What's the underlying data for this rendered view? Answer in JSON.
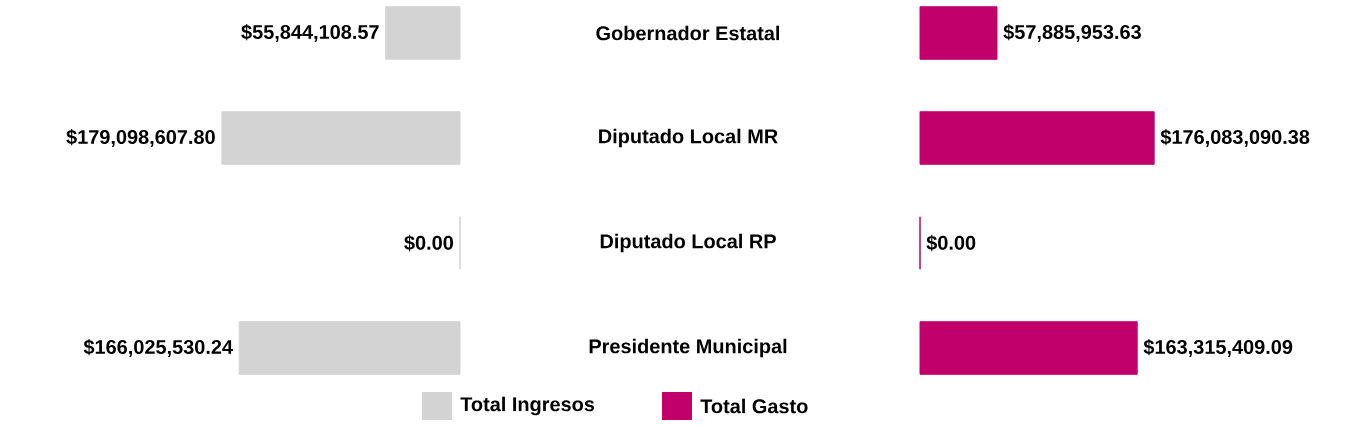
{
  "chart_data": [
    {
      "type": "bar",
      "orientation": "horizontal",
      "categories": [
        "Gobernador Estatal",
        "Diputado Local MR",
        "Diputado Local RP",
        "Presidente Municipal"
      ],
      "series": [
        {
          "name": "Total Ingresos",
          "color": "#d3d3d3",
          "values": [
            55844108.57,
            179098607.8,
            0,
            166025530.24
          ],
          "value_labels": [
            "$55,844,108.57",
            "$179,098,607.80",
            "$0.00",
            "$166,025,530.24"
          ]
        }
      ],
      "legend": "bottom",
      "tick_labels": "y"
    },
    {
      "type": "bar",
      "orientation": "horizontal",
      "categories": [
        null,
        null,
        null,
        null
      ],
      "series": [
        {
          "name": "Total Gasto",
          "color": "#c2006b",
          "values": [
            57885953.63,
            176083090.38,
            0,
            163315409.09
          ],
          "value_labels": [
            "$57,885,953.63",
            "$176,083,090.38",
            "$0.00",
            "$163,315,409.09"
          ]
        }
      ],
      "legend": "bottom",
      "tick_labels": false
    }
  ]
}
